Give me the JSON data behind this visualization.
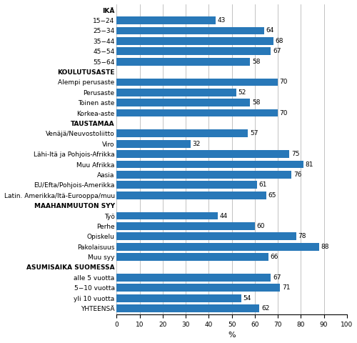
{
  "categories": [
    "IKÄ",
    "15−24",
    "25−34",
    "35−44",
    "45−54",
    "55−64",
    "KOULUTUSASTE",
    "Alempi perusaste",
    "Perusaste",
    "Toinen aste",
    "Korkea-aste",
    "TAUSTAMAA",
    "Venäjä/Neuvostoliitto",
    "Viro",
    "Lähi-Itä ja Pohjois-Afrikka",
    "Muu Afrikka",
    "Aasia",
    "EU/Efta/Pohjois-Amerikka",
    "Latin. Amerikka/Itä-Eurooppa/muu",
    "MAAHANMUUTON SYY",
    "Työ",
    "Perhe",
    "Opiskelu",
    "Pakolaisuus",
    "Muu syy",
    "ASUMISAIKA SUOMESSA",
    "alle 5 vuotta",
    "5−10 vuotta",
    "yli 10 vuotta",
    "YHTEENSÄ"
  ],
  "values": [
    null,
    43,
    64,
    68,
    67,
    58,
    null,
    70,
    52,
    58,
    70,
    null,
    57,
    32,
    75,
    81,
    76,
    61,
    65,
    null,
    44,
    60,
    78,
    88,
    66,
    null,
    67,
    71,
    54,
    62
  ],
  "header_labels": [
    "IKÄ",
    "KOULUTUSASTE",
    "TAUSTAMAA",
    "MAAHANMUUTON SYY",
    "ASUMISAIKA SUOMESSA"
  ],
  "bar_color": "#2878b8",
  "xlim": [
    0,
    100
  ],
  "xticks": [
    0,
    10,
    20,
    30,
    40,
    50,
    60,
    70,
    80,
    90,
    100
  ],
  "xlabel": "%",
  "figure_width": 5.0,
  "figure_height": 4.8,
  "dpi": 100,
  "bar_height": 0.75,
  "label_fontsize": 6.5,
  "value_fontsize": 6.5,
  "xlabel_fontsize": 8
}
